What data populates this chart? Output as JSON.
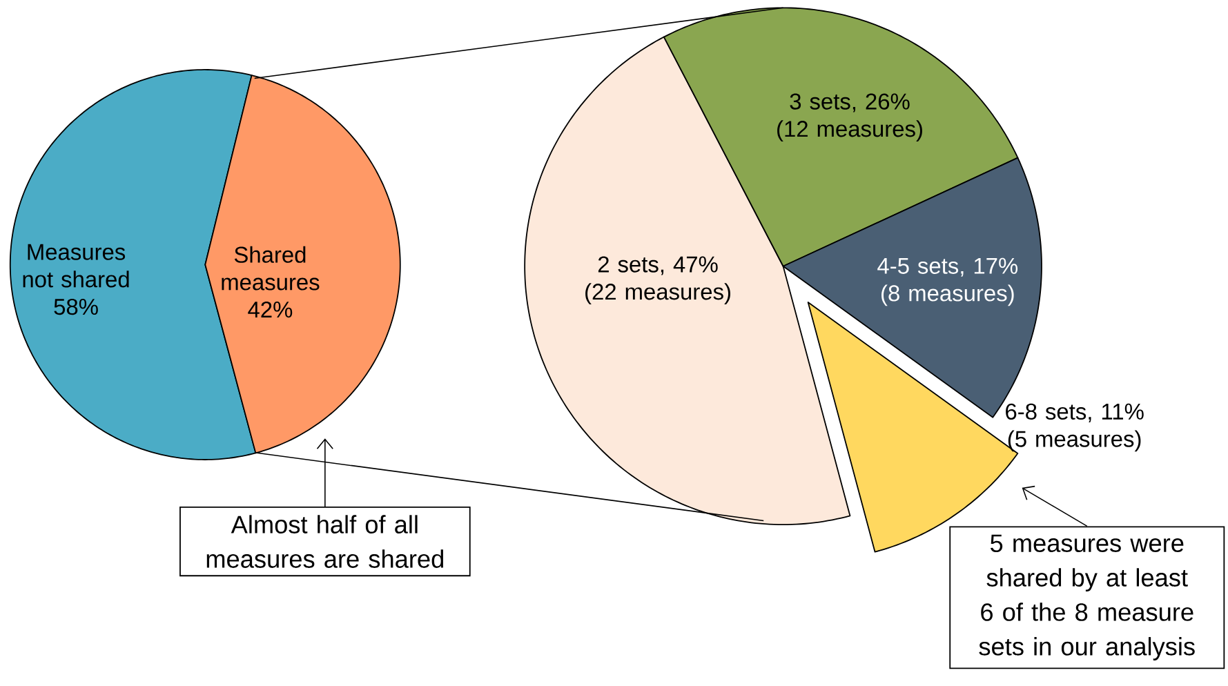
{
  "chart_data": [
    {
      "type": "pie",
      "categories": [
        "Measures not shared",
        "Shared measures"
      ],
      "values": [
        58,
        42
      ],
      "value_labels": [
        "58%",
        "42%"
      ],
      "colors": [
        "#4bacc6",
        "#ff9966"
      ],
      "annotations": [
        "Almost half of all measures are shared"
      ]
    },
    {
      "type": "pie",
      "categories": [
        "2 sets",
        "3 sets",
        "4-5 sets",
        "6-8 sets"
      ],
      "values": [
        47,
        26,
        17,
        11
      ],
      "value_labels": [
        ", 47% (22 measures)",
        ", 26% (12 measures)",
        ", 17% (8 measures)",
        ", 11% (5 measures)"
      ],
      "colors": [
        "#fde9db",
        "#8aa650",
        "#4a5f74",
        "#ffd85f"
      ],
      "annotations": [
        "5 measures were shared by at least 6 of the 8 measure sets in our analysis"
      ]
    }
  ]
}
